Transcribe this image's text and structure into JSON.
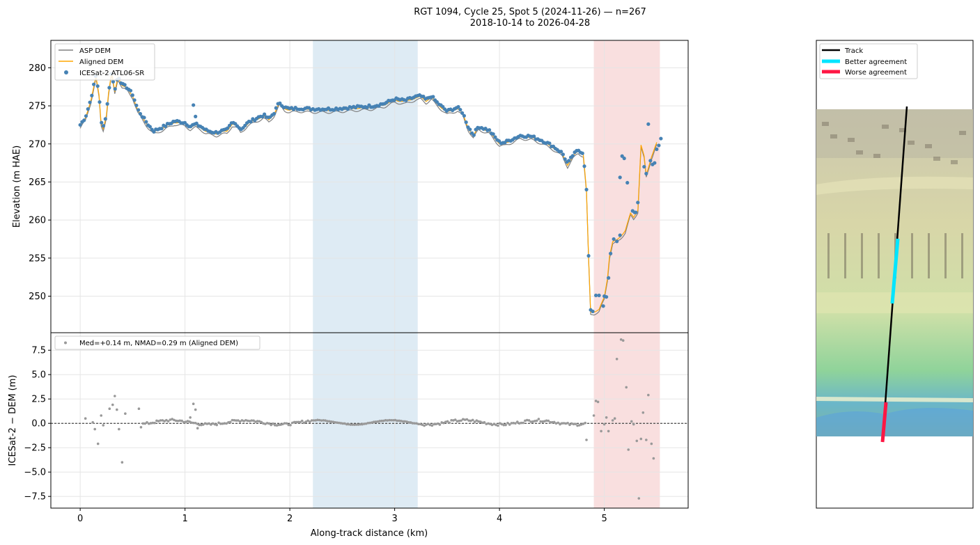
{
  "figure": {
    "title_line1": "RGT 1094, Cycle 25, Spot 5 (2024-11-26) — n=267",
    "title_line2": "2018-10-14 to 2026-04-28"
  },
  "colors": {
    "asp": "#808080",
    "aligned": "#ffa500",
    "icesat": "#4682b4",
    "resid": "#999999",
    "blue_span": "#1f77b4",
    "red_span": "#d62728",
    "track": "#000000",
    "better": "#00e5ff",
    "worse": "#ff1744"
  },
  "chart_data": [
    {
      "type": "line",
      "panel": "elevation",
      "ylabel": "Elevation (m HAE)",
      "xlim": [
        -0.28,
        5.8
      ],
      "ylim": [
        245.2,
        283.6
      ],
      "yticks": [
        250,
        255,
        260,
        265,
        270,
        275,
        280
      ],
      "yticklabels": [
        "250",
        "255",
        "260",
        "265",
        "270",
        "275",
        "280"
      ],
      "grid": true,
      "legend_position": "top-left",
      "legend": [
        "ASP DEM",
        "Aligned DEM",
        "ICESat-2 ATL06-SR"
      ],
      "spans": [
        {
          "color": "blue",
          "x0": 2.22,
          "x1": 3.22
        },
        {
          "color": "red",
          "x0": 4.9,
          "x1": 5.53
        }
      ],
      "profile_anchors": [
        [
          0.0,
          272.5
        ],
        [
          0.05,
          273.5
        ],
        [
          0.1,
          275.8
        ],
        [
          0.15,
          279
        ],
        [
          0.18,
          276.5
        ],
        [
          0.2,
          272.8
        ],
        [
          0.22,
          272.2
        ],
        [
          0.25,
          274
        ],
        [
          0.27,
          276.8
        ],
        [
          0.3,
          279.5
        ],
        [
          0.33,
          277
        ],
        [
          0.36,
          279
        ],
        [
          0.4,
          277.8
        ],
        [
          0.45,
          277.4
        ],
        [
          0.5,
          276.5
        ],
        [
          0.55,
          274.5
        ],
        [
          0.6,
          273.5
        ],
        [
          0.65,
          272.5
        ],
        [
          0.7,
          271.7
        ],
        [
          0.75,
          272
        ],
        [
          0.8,
          272.3
        ],
        [
          0.9,
          273
        ],
        [
          1.0,
          272.8
        ],
        [
          1.05,
          272.3
        ],
        [
          1.1,
          272.6
        ],
        [
          1.15,
          272.3
        ],
        [
          1.2,
          271.8
        ],
        [
          1.25,
          271.6
        ],
        [
          1.3,
          271.5
        ],
        [
          1.35,
          271.7
        ],
        [
          1.4,
          271.8
        ],
        [
          1.45,
          272.8
        ],
        [
          1.5,
          272.5
        ],
        [
          1.53,
          271.9
        ],
        [
          1.6,
          272.8
        ],
        [
          1.7,
          273.5
        ],
        [
          1.75,
          273.8
        ],
        [
          1.8,
          273.3
        ],
        [
          1.85,
          274.1
        ],
        [
          1.9,
          275.5
        ],
        [
          1.95,
          274.8
        ],
        [
          2.0,
          274.6
        ],
        [
          2.1,
          274.7
        ],
        [
          2.2,
          274.6
        ],
        [
          2.4,
          274.6
        ],
        [
          2.6,
          274.8
        ],
        [
          2.8,
          275.0
        ],
        [
          2.9,
          275.3
        ],
        [
          3.0,
          275.9
        ],
        [
          3.1,
          275.7
        ],
        [
          3.2,
          276.2
        ],
        [
          3.25,
          276.3
        ],
        [
          3.3,
          275.8
        ],
        [
          3.35,
          276.3
        ],
        [
          3.4,
          275.5
        ],
        [
          3.5,
          274.3
        ],
        [
          3.6,
          274.8
        ],
        [
          3.65,
          274.1
        ],
        [
          3.7,
          272.3
        ],
        [
          3.75,
          271.2
        ],
        [
          3.8,
          272.3
        ],
        [
          3.9,
          271.8
        ],
        [
          4.0,
          270.2
        ],
        [
          4.05,
          270.2
        ],
        [
          4.1,
          270.5
        ],
        [
          4.2,
          271.1
        ],
        [
          4.3,
          271.0
        ],
        [
          4.4,
          270.5
        ],
        [
          4.5,
          269.8
        ],
        [
          4.6,
          268.8
        ],
        [
          4.65,
          267.4
        ],
        [
          4.7,
          268.5
        ],
        [
          4.75,
          269.2
        ],
        [
          4.8,
          268.8
        ],
        [
          4.83,
          264
        ],
        [
          4.85,
          255.3
        ],
        [
          4.87,
          248
        ],
        [
          4.9,
          248.1
        ],
        [
          4.95,
          248.4
        ],
        [
          5.0,
          250
        ],
        [
          5.03,
          252.5
        ],
        [
          5.05,
          255.5
        ],
        [
          5.08,
          257.3
        ],
        [
          5.12,
          257.5
        ],
        [
          5.15,
          257.9
        ],
        [
          5.2,
          258.8
        ],
        [
          5.25,
          261
        ],
        [
          5.28,
          260.5
        ],
        [
          5.32,
          261.5
        ],
        [
          5.35,
          270
        ],
        [
          5.38,
          268.5
        ],
        [
          5.4,
          266
        ],
        [
          5.45,
          268.5
        ],
        [
          5.5,
          270.3
        ]
      ],
      "icesat_scatter": [
        [
          4.92,
          250.1
        ],
        [
          4.95,
          250.1
        ],
        [
          4.99,
          248.7
        ],
        [
          5.0,
          250.0
        ],
        [
          5.02,
          249.9
        ],
        [
          5.15,
          265.6
        ],
        [
          5.17,
          268.4
        ],
        [
          5.19,
          268.1
        ],
        [
          5.22,
          264.9
        ],
        [
          5.27,
          261.2
        ],
        [
          5.29,
          261.0
        ],
        [
          5.3,
          261.0
        ],
        [
          5.32,
          262.3
        ],
        [
          5.38,
          267.0
        ],
        [
          5.4,
          266.1
        ],
        [
          5.42,
          272.6
        ],
        [
          5.44,
          267.8
        ],
        [
          5.46,
          267.3
        ],
        [
          5.48,
          267.5
        ],
        [
          5.5,
          269.3
        ],
        [
          5.52,
          269.8
        ],
        [
          5.54,
          270.7
        ],
        [
          1.08,
          275.1
        ],
        [
          1.1,
          273.6
        ]
      ]
    },
    {
      "type": "scatter",
      "panel": "residuals",
      "xlabel": "Along-track distance (km)",
      "ylabel": "ICESat-2 − DEM (m)",
      "xlim": [
        -0.28,
        5.8
      ],
      "ylim": [
        -8.7,
        9.3
      ],
      "xticks": [
        0,
        1,
        2,
        3,
        4,
        5
      ],
      "xticklabels": [
        "0",
        "1",
        "2",
        "3",
        "4",
        "5"
      ],
      "yticks": [
        -7.5,
        -5.0,
        -2.5,
        0.0,
        2.5,
        5.0,
        7.5
      ],
      "yticklabels": [
        "−7.5",
        "−5.0",
        "−2.5",
        "0.0",
        "2.5",
        "5.0",
        "7.5"
      ],
      "grid": true,
      "zero_line": true,
      "legend_position": "top-left",
      "legend": [
        "Med=+0.14 m, NMAD=0.29 m (Aligned DEM)"
      ],
      "outliers": [
        [
          0.05,
          0.5
        ],
        [
          0.12,
          0.1
        ],
        [
          0.14,
          -0.6
        ],
        [
          0.17,
          -2.1
        ],
        [
          0.2,
          0.8
        ],
        [
          0.22,
          -0.2
        ],
        [
          0.28,
          1.5
        ],
        [
          0.31,
          1.9
        ],
        [
          0.33,
          2.8
        ],
        [
          0.35,
          1.4
        ],
        [
          0.37,
          -0.6
        ],
        [
          0.4,
          -4.0
        ],
        [
          0.43,
          1.0
        ],
        [
          0.56,
          1.5
        ],
        [
          0.58,
          -0.4
        ],
        [
          1.05,
          0.6
        ],
        [
          1.08,
          2.0
        ],
        [
          1.1,
          1.4
        ],
        [
          1.12,
          -0.5
        ],
        [
          4.83,
          -1.7
        ],
        [
          4.9,
          0.8
        ],
        [
          4.92,
          2.3
        ],
        [
          4.94,
          2.2
        ],
        [
          4.97,
          -0.8
        ],
        [
          5.0,
          -0.1
        ],
        [
          5.02,
          0.6
        ],
        [
          5.04,
          -0.8
        ],
        [
          5.08,
          0.3
        ],
        [
          5.1,
          0.5
        ],
        [
          5.12,
          6.6
        ],
        [
          5.16,
          8.6
        ],
        [
          5.18,
          8.5
        ],
        [
          5.21,
          3.7
        ],
        [
          5.23,
          -2.7
        ],
        [
          5.26,
          0.2
        ],
        [
          5.28,
          -0.1
        ],
        [
          5.31,
          -1.8
        ],
        [
          5.33,
          -7.7
        ],
        [
          5.35,
          -1.6
        ],
        [
          5.37,
          1.1
        ],
        [
          5.4,
          -1.7
        ],
        [
          5.42,
          2.9
        ],
        [
          5.45,
          -2.1
        ],
        [
          5.47,
          -3.6
        ]
      ]
    }
  ],
  "map_panel": {
    "legend": [
      "Track",
      "Better agreement",
      "Worse agreement"
    ]
  }
}
